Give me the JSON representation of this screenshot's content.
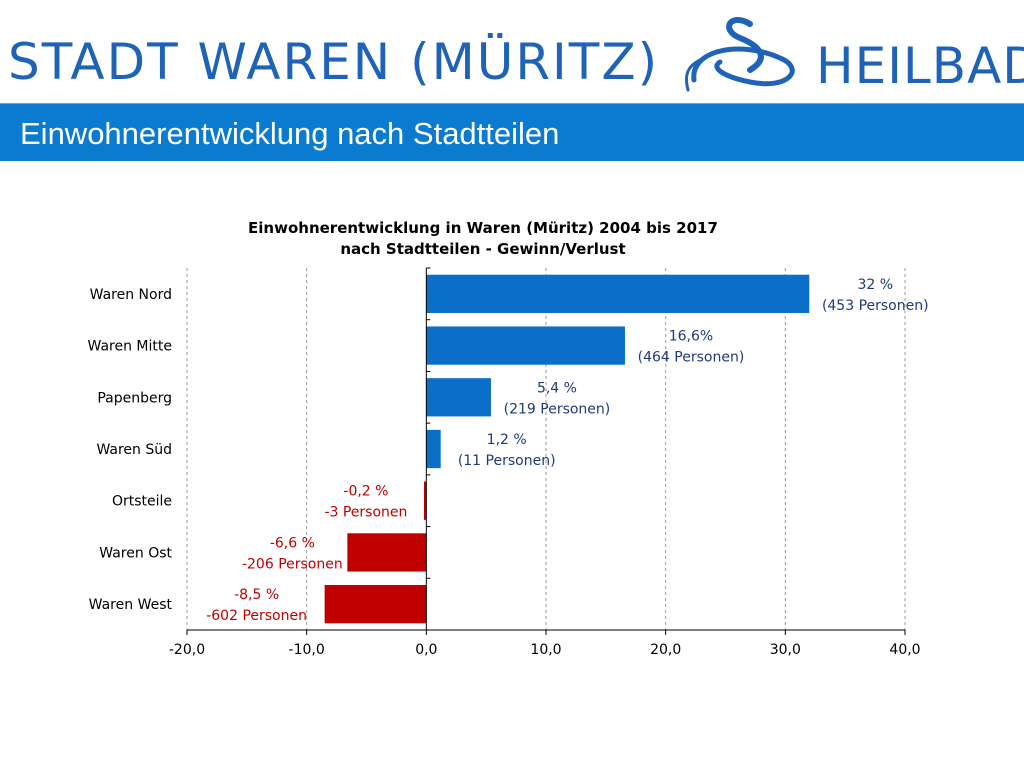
{
  "header": {
    "brand_left": "STADT WAREN (MÜRITZ)",
    "brand_right": "HEILBAD",
    "logo_icon": "waves-logo-icon",
    "brand_color": "#1f63b8"
  },
  "slide": {
    "title": "Einwohnerentwicklung nach Stadtteilen",
    "title_bar_color": "#0b7bd0"
  },
  "chart_data": {
    "type": "bar",
    "orientation": "horizontal",
    "title_line1": "Einwohnerentwicklung in Waren (Müritz) 2004 bis 2017",
    "title_line2": "nach Stadtteilen - Gewinn/Verlust",
    "categories": [
      "Waren Nord",
      "Waren Mitte",
      "Papenberg",
      "Waren Süd",
      "Ortsteile",
      "Waren Ost",
      "Waren West"
    ],
    "values": [
      32,
      16.6,
      5.4,
      1.2,
      -0.2,
      -6.6,
      -8.5
    ],
    "labels_line1": [
      "32 %",
      "16,6%",
      "5,4 %",
      "1,2 %",
      "-0,2 %",
      "-6,6 %",
      "-8,5 %"
    ],
    "labels_line2": [
      "(453 Personen)",
      "(464 Personen)",
      "(219 Personen)",
      "(11 Personen)",
      "-3 Personen",
      "-206 Personen",
      "-602 Personen"
    ],
    "xlim": [
      -20,
      40
    ],
    "xticks": [
      -20,
      -10,
      0,
      10,
      20,
      30,
      40
    ],
    "xtick_labels": [
      "-20,0",
      "-10,0",
      "0,0",
      "10,0",
      "20,0",
      "30,0",
      "40,0"
    ],
    "grid": true,
    "positive_color": "#0b6fc9",
    "negative_color": "#c00000",
    "positive_label_color": "#1f3a7a",
    "negative_label_color": "#c00000"
  }
}
